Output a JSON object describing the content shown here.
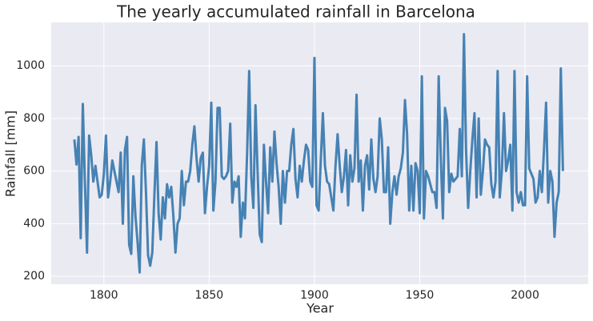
{
  "chart_data": {
    "type": "line",
    "title": "The yearly accumulated rainfall in Barcelona",
    "x_label": "Year",
    "y_label": "Rainfall [mm]",
    "x": [
      1786,
      1787,
      1788,
      1789,
      1790,
      1791,
      1792,
      1793,
      1794,
      1795,
      1796,
      1797,
      1798,
      1799,
      1800,
      1801,
      1802,
      1803,
      1804,
      1805,
      1806,
      1807,
      1808,
      1809,
      1810,
      1811,
      1812,
      1813,
      1814,
      1815,
      1816,
      1817,
      1818,
      1819,
      1820,
      1821,
      1822,
      1823,
      1824,
      1825,
      1826,
      1827,
      1828,
      1829,
      1830,
      1831,
      1832,
      1833,
      1834,
      1835,
      1836,
      1837,
      1838,
      1839,
      1840,
      1841,
      1842,
      1843,
      1844,
      1845,
      1846,
      1847,
      1848,
      1849,
      1850,
      1851,
      1852,
      1853,
      1854,
      1855,
      1856,
      1857,
      1858,
      1859,
      1860,
      1861,
      1862,
      1863,
      1864,
      1865,
      1866,
      1867,
      1868,
      1869,
      1870,
      1871,
      1872,
      1873,
      1874,
      1875,
      1876,
      1877,
      1878,
      1879,
      1880,
      1881,
      1882,
      1883,
      1884,
      1885,
      1886,
      1887,
      1888,
      1889,
      1890,
      1891,
      1892,
      1893,
      1894,
      1895,
      1896,
      1897,
      1898,
      1899,
      1900,
      1901,
      1902,
      1903,
      1904,
      1905,
      1906,
      1907,
      1908,
      1909,
      1910,
      1911,
      1912,
      1913,
      1914,
      1915,
      1916,
      1917,
      1918,
      1919,
      1920,
      1921,
      1922,
      1923,
      1924,
      1925,
      1926,
      1927,
      1928,
      1929,
      1930,
      1931,
      1932,
      1933,
      1934,
      1935,
      1936,
      1937,
      1938,
      1939,
      1940,
      1941,
      1942,
      1943,
      1944,
      1945,
      1946,
      1947,
      1948,
      1949,
      1950,
      1951,
      1952,
      1953,
      1954,
      1955,
      1956,
      1957,
      1958,
      1959,
      1960,
      1961,
      1962,
      1963,
      1964,
      1965,
      1966,
      1967,
      1968,
      1969,
      1970,
      1971,
      1972,
      1973,
      1974,
      1975,
      1976,
      1977,
      1978,
      1979,
      1980,
      1981,
      1982,
      1983,
      1984,
      1985,
      1986,
      1987,
      1988,
      1989,
      1990,
      1991,
      1992,
      1993,
      1994,
      1995,
      1996,
      1997,
      1998,
      1999,
      2000,
      2001,
      2002,
      2003,
      2004,
      2005,
      2006,
      2007,
      2008,
      2009,
      2010,
      2011,
      2012,
      2013,
      2014,
      2015,
      2016,
      2017,
      2018
    ],
    "series": [
      {
        "name": "Rainfall",
        "color": "#4682b4",
        "values": [
          720,
          625,
          730,
          345,
          855,
          560,
          290,
          735,
          660,
          560,
          620,
          560,
          500,
          510,
          590,
          735,
          500,
          560,
          640,
          600,
          560,
          520,
          670,
          400,
          680,
          730,
          320,
          285,
          580,
          430,
          330,
          215,
          620,
          720,
          520,
          280,
          240,
          290,
          510,
          710,
          440,
          340,
          500,
          420,
          550,
          500,
          540,
          430,
          290,
          400,
          420,
          600,
          470,
          560,
          560,
          600,
          700,
          770,
          650,
          560,
          650,
          670,
          440,
          540,
          620,
          860,
          450,
          560,
          840,
          840,
          580,
          570,
          580,
          600,
          780,
          480,
          560,
          540,
          580,
          350,
          480,
          420,
          660,
          980,
          580,
          460,
          850,
          600,
          360,
          330,
          700,
          560,
          440,
          690,
          560,
          750,
          630,
          540,
          400,
          600,
          480,
          600,
          600,
          700,
          760,
          570,
          500,
          620,
          560,
          640,
          700,
          680,
          560,
          540,
          1030,
          470,
          450,
          640,
          820,
          620,
          560,
          550,
          500,
          450,
          620,
          740,
          620,
          520,
          580,
          680,
          470,
          660,
          560,
          610,
          890,
          560,
          640,
          450,
          620,
          660,
          530,
          720,
          570,
          520,
          580,
          800,
          720,
          520,
          520,
          690,
          400,
          520,
          580,
          510,
          580,
          610,
          670,
          870,
          740,
          450,
          620,
          450,
          630,
          600,
          440,
          960,
          420,
          600,
          580,
          550,
          520,
          520,
          460,
          960,
          650,
          420,
          840,
          790,
          520,
          590,
          560,
          570,
          580,
          760,
          580,
          1120,
          680,
          460,
          600,
          720,
          820,
          500,
          800,
          510,
          600,
          720,
          700,
          690,
          550,
          500,
          560,
          980,
          500,
          600,
          820,
          600,
          640,
          700,
          450,
          980,
          520,
          480,
          520,
          470,
          470,
          960,
          610,
          590,
          570,
          480,
          500,
          600,
          520,
          680,
          860,
          480,
          600,
          560,
          350,
          480,
          520,
          990,
          600
        ]
      }
    ],
    "xlim": [
      1775,
      2030
    ],
    "ylim": [
      170,
      1165
    ],
    "xticks": [
      1800,
      1850,
      1900,
      1950,
      2000
    ],
    "yticks": [
      200,
      400,
      600,
      800,
      1000
    ],
    "grid": true
  }
}
